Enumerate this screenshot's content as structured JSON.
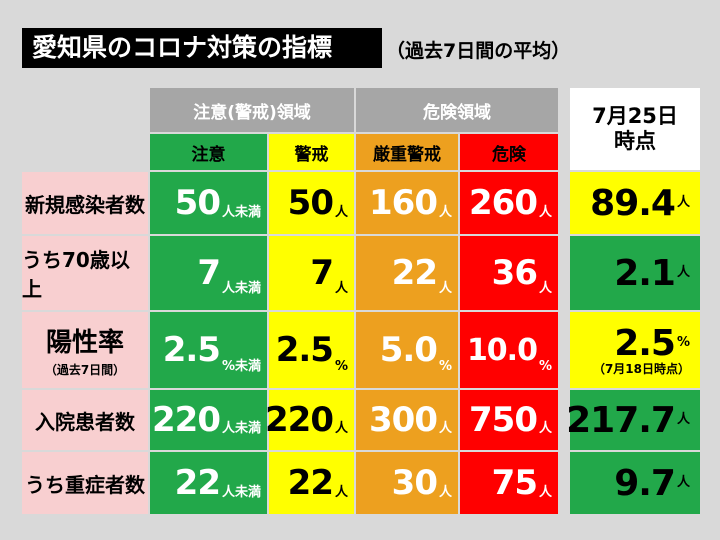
{
  "title": "愛知県のコロナ対策の指標",
  "subtitle": "（過去7日間の平均）",
  "header": {
    "group_caution": "注意(警戒)領域",
    "group_danger": "危険領域",
    "col_caution": "注意",
    "col_alert": "警戒",
    "col_severe": "厳重警戒",
    "col_danger": "危険",
    "date_line1": "7月25日",
    "date_line2": "時点"
  },
  "rows": [
    {
      "label": "新規感染者数",
      "caution": {
        "v": "50",
        "u": "人未満"
      },
      "alert": {
        "v": "50",
        "u": "人"
      },
      "severe": {
        "v": "160",
        "u": "人"
      },
      "danger": {
        "v": "260",
        "u": "人"
      },
      "current": {
        "v": "89.4",
        "u": "人"
      }
    },
    {
      "label": "うち70歳以上",
      "caution": {
        "v": "7",
        "u": "人未満"
      },
      "alert": {
        "v": "7",
        "u": "人"
      },
      "severe": {
        "v": "22",
        "u": "人"
      },
      "danger": {
        "v": "36",
        "u": "人"
      },
      "current": {
        "v": "2.1",
        "u": "人"
      }
    },
    {
      "label": "陽性率",
      "label_note": "（過去7日間）",
      "caution": {
        "v": "2.5",
        "u": "%未満"
      },
      "alert": {
        "v": "2.5",
        "u": "%"
      },
      "severe": {
        "v": "5.0",
        "u": "%"
      },
      "danger": {
        "v": "10.0",
        "u": "%"
      },
      "current": {
        "v": "2.5",
        "u": "%",
        "note": "（7月18日時点）"
      }
    },
    {
      "label": "入院患者数",
      "caution": {
        "v": "220",
        "u": "人未満"
      },
      "alert": {
        "v": "220",
        "u": "人"
      },
      "severe": {
        "v": "300",
        "u": "人"
      },
      "danger": {
        "v": "750",
        "u": "人"
      },
      "current": {
        "v": "217.7",
        "u": "人"
      }
    },
    {
      "label": "うち重症者数",
      "caution": {
        "v": "22",
        "u": "人未満"
      },
      "alert": {
        "v": "22",
        "u": "人"
      },
      "severe": {
        "v": "30",
        "u": "人"
      },
      "danger": {
        "v": "75",
        "u": "人"
      },
      "current": {
        "v": "9.7",
        "u": "人"
      }
    }
  ],
  "colors": {
    "caution": "#22a84a",
    "alert": "#ffff00",
    "severe": "#eda01f",
    "danger": "#ff0000",
    "current_levels": [
      "yellow",
      "green",
      "yellow",
      "green",
      "green"
    ]
  }
}
